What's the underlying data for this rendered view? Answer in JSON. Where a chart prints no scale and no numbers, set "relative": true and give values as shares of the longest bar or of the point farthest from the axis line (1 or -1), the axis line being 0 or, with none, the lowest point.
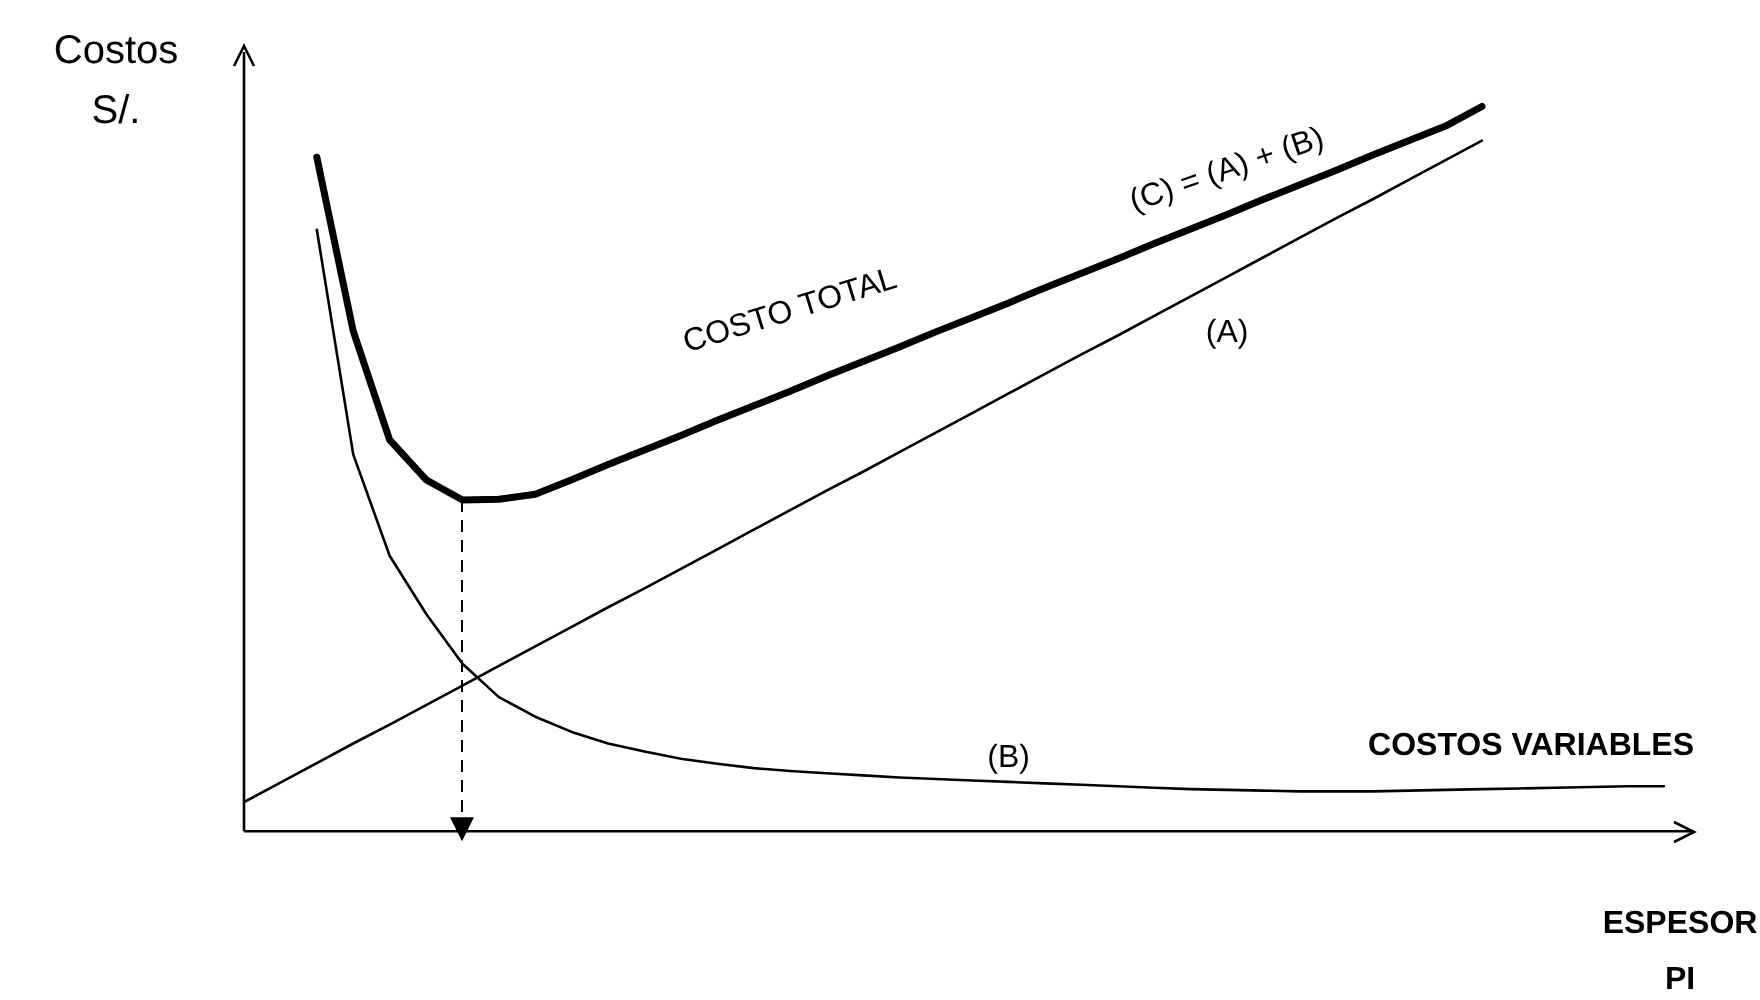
{
  "chart_data": {
    "type": "line",
    "relative": true,
    "xlabel": "ESPESOR PI",
    "ylabel": "Costos S/.",
    "grid": false,
    "legend": false,
    "marker": "none",
    "line_style": "solid",
    "categories": [
      null,
      null,
      null,
      null,
      null,
      null,
      null,
      null,
      null,
      null,
      null,
      null,
      null,
      null,
      null,
      null,
      null,
      null,
      null,
      null,
      null,
      null,
      null,
      null,
      null,
      null,
      null,
      null,
      null,
      null,
      null,
      null,
      null,
      null,
      null,
      null,
      null,
      null,
      null,
      null
    ],
    "series": [
      {
        "name": "(C) = (A) + (B)",
        "color": "#000000",
        "values": [
          null,
          null,
          0.93,
          0.69,
          0.54,
          0.485,
          0.457,
          0.458,
          0.465,
          0.485,
          0.506,
          0.526,
          0.546,
          0.567,
          0.587,
          0.607,
          0.628,
          0.648,
          0.668,
          0.689,
          0.709,
          0.729,
          0.75,
          0.77,
          0.79,
          0.811,
          0.831,
          0.851,
          0.872,
          0.892,
          0.912,
          0.933,
          0.953,
          0.973,
          1.0,
          null,
          null,
          null,
          null,
          null
        ]
      },
      {
        "name": "(A)",
        "color": "#000000",
        "values": [
          0.04,
          0.067,
          0.094,
          0.121,
          0.147,
          0.174,
          0.201,
          0.228,
          0.255,
          0.282,
          0.309,
          0.335,
          0.362,
          0.389,
          0.416,
          0.443,
          0.47,
          0.496,
          0.523,
          0.55,
          0.577,
          0.604,
          0.631,
          0.658,
          0.684,
          0.711,
          0.738,
          0.765,
          0.792,
          0.819,
          0.846,
          0.872,
          0.899,
          0.926,
          0.953,
          null,
          null,
          null,
          null,
          null
        ]
      },
      {
        "name": "(B)",
        "color": "#000000",
        "values": [
          null,
          null,
          0.83,
          0.52,
          0.38,
          0.3,
          0.231,
          0.185,
          0.158,
          0.137,
          0.121,
          0.11,
          0.1,
          0.093,
          0.087,
          0.083,
          0.08,
          0.077,
          0.074,
          0.072,
          0.07,
          0.068,
          0.066,
          0.064,
          0.062,
          0.06,
          0.058,
          0.057,
          0.056,
          0.055,
          0.055,
          0.055,
          0.056,
          0.057,
          0.058,
          0.059,
          0.06,
          0.061,
          0.062,
          0.062
        ]
      }
    ],
    "annotations": [
      "COSTO TOTAL",
      "COSTOS VARIABLES"
    ]
  }
}
